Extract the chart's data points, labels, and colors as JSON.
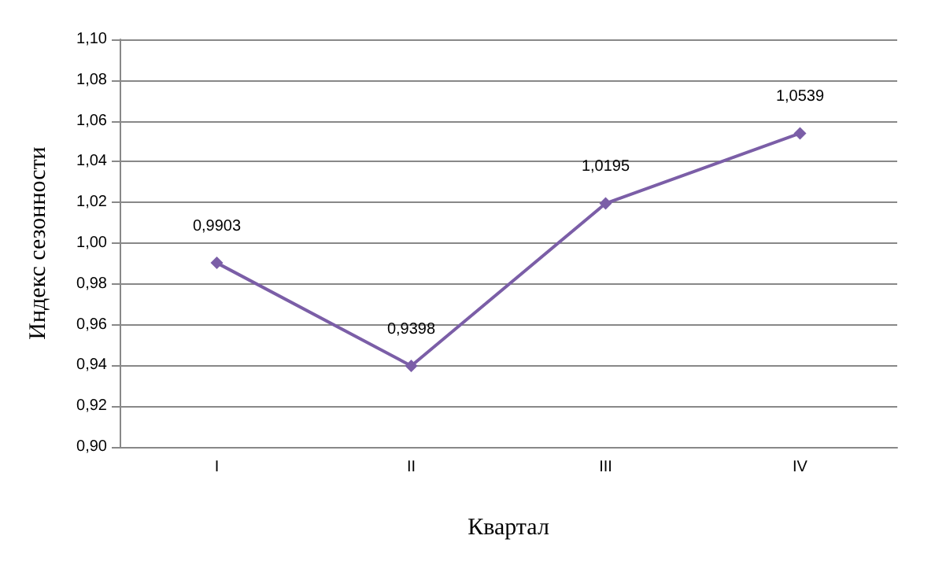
{
  "chart_data": {
    "type": "line",
    "xlabel": "Квартал",
    "ylabel": "Индекс сезонности",
    "categories": [
      "I",
      "II",
      "III",
      "IV"
    ],
    "series": [
      {
        "color": "#7b5ea7",
        "values": [
          0.9903,
          0.9398,
          1.0195,
          1.0539
        ],
        "value_labels": [
          "0,9903",
          "0,9398",
          "1,0195",
          "1,0539"
        ]
      }
    ],
    "ylim": [
      0.9,
      1.1
    ],
    "yticks": [
      {
        "value": 0.9,
        "label": "0,90"
      },
      {
        "value": 0.92,
        "label": "0,92"
      },
      {
        "value": 0.94,
        "label": "0,94"
      },
      {
        "value": 0.96,
        "label": "0,96"
      },
      {
        "value": 0.98,
        "label": "0,98"
      },
      {
        "value": 1.0,
        "label": "1,00"
      },
      {
        "value": 1.02,
        "label": "1,02"
      },
      {
        "value": 1.04,
        "label": "1,04"
      },
      {
        "value": 1.06,
        "label": "1,06"
      },
      {
        "value": 1.08,
        "label": "1,08"
      },
      {
        "value": 1.1,
        "label": "1,10"
      }
    ],
    "grid": "y",
    "marker": "diamond",
    "line_style": "solid"
  }
}
